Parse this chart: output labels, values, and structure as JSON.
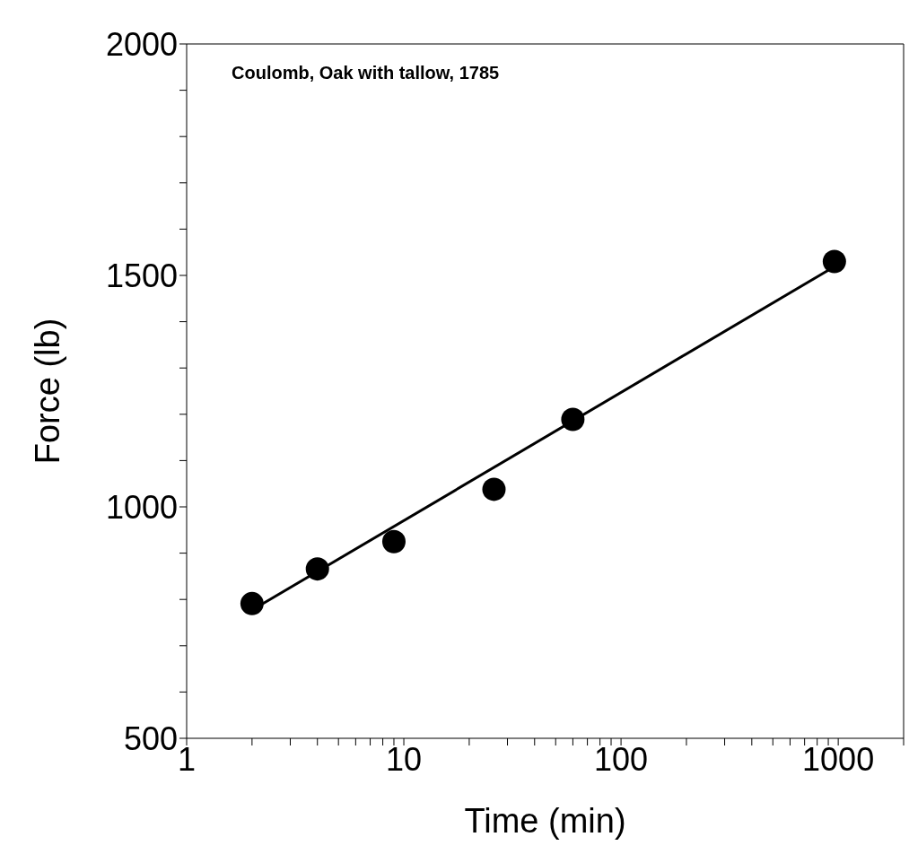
{
  "chart_data": {
    "type": "scatter",
    "xlabel": "Time (min)",
    "ylabel": "Force (lb)",
    "annotations": [
      "Coulomb, Oak with tallow, 1785"
    ],
    "log": "x",
    "xlim": [
      1,
      2000
    ],
    "ylim": [
      500,
      2000
    ],
    "xticks": [
      1,
      {
        "value": 2,
        "label": null
      },
      {
        "value": 3,
        "label": null
      },
      {
        "value": 4,
        "label": null
      },
      {
        "value": 5,
        "label": null
      },
      {
        "value": 6,
        "label": null
      },
      {
        "value": 7,
        "label": null
      },
      {
        "value": 8,
        "label": null
      },
      {
        "value": 9,
        "label": null
      },
      10,
      {
        "value": 20,
        "label": null
      },
      {
        "value": 30,
        "label": null
      },
      {
        "value": 40,
        "label": null
      },
      {
        "value": 50,
        "label": null
      },
      {
        "value": 60,
        "label": null
      },
      {
        "value": 70,
        "label": null
      },
      {
        "value": 80,
        "label": null
      },
      {
        "value": 90,
        "label": null
      },
      100,
      {
        "value": 200,
        "label": null
      },
      {
        "value": 300,
        "label": null
      },
      {
        "value": 400,
        "label": null
      },
      {
        "value": 500,
        "label": null
      },
      {
        "value": 600,
        "label": null
      },
      {
        "value": 700,
        "label": null
      },
      {
        "value": 800,
        "label": null
      },
      {
        "value": 900,
        "label": null
      },
      1000,
      {
        "value": 2000,
        "label": null
      }
    ],
    "yticks": [
      500,
      {
        "value": 600,
        "label": null
      },
      {
        "value": 700,
        "label": null
      },
      {
        "value": 800,
        "label": null
      },
      {
        "value": 900,
        "label": null
      },
      1000,
      {
        "value": 1100,
        "label": null
      },
      {
        "value": 1200,
        "label": null
      },
      {
        "value": 1300,
        "label": null
      },
      {
        "value": 1400,
        "label": null
      },
      1500,
      {
        "value": 1600,
        "label": null
      },
      {
        "value": 1700,
        "label": null
      },
      {
        "value": 1800,
        "label": null
      },
      {
        "value": 1900,
        "label": null
      },
      2000
    ],
    "series": [
      {
        "marker": "circle",
        "color": "#000000",
        "x": [
          2,
          4,
          9,
          26,
          60,
          960
        ],
        "values": [
          791,
          866,
          925,
          1038,
          1189,
          1530
        ]
      },
      {
        "type": "line",
        "marker": "none",
        "color": "#000000",
        "x": [
          2,
          960
        ],
        "values": [
          777,
          1519
        ]
      }
    ]
  }
}
